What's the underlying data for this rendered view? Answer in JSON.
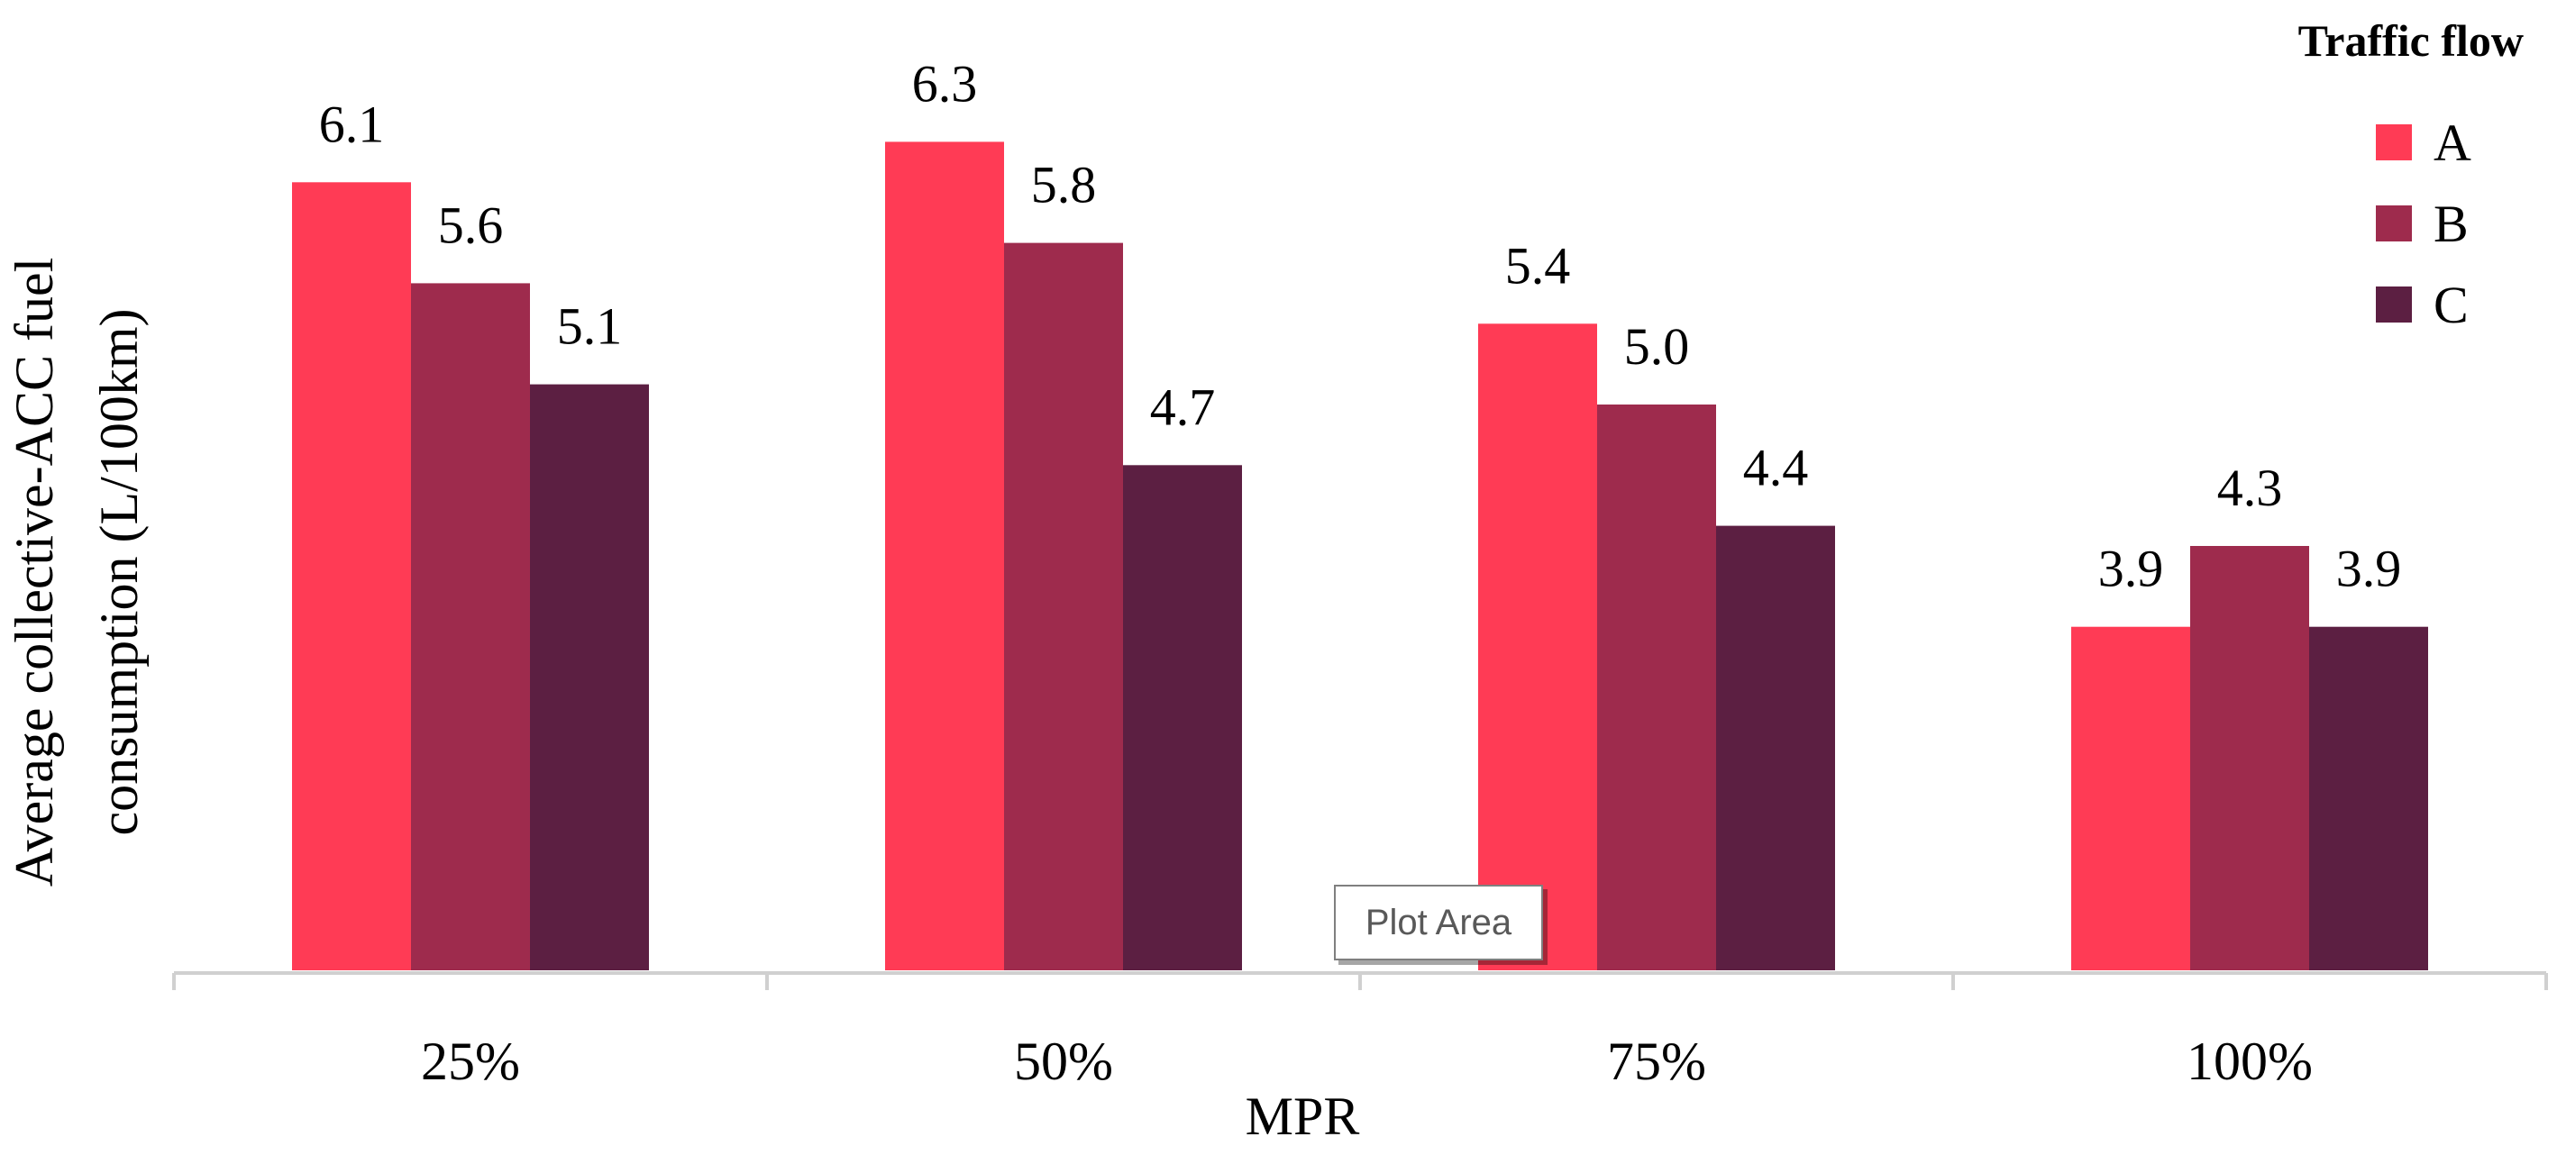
{
  "chart_data": {
    "type": "bar",
    "categories": [
      "25%",
      "50%",
      "75%",
      "100%"
    ],
    "series": [
      {
        "name": "A",
        "values": [
          6.1,
          6.3,
          5.4,
          3.9
        ],
        "color": "#ff3b55"
      },
      {
        "name": "B",
        "values": [
          5.6,
          5.8,
          5.0,
          4.3
        ],
        "color": "#9e2b4d"
      },
      {
        "name": "C",
        "values": [
          5.1,
          4.7,
          4.4,
          3.9
        ],
        "color": "#5c1f42"
      }
    ],
    "data_labels": [
      [
        "6.1",
        "6.3",
        "5.4",
        "3.9"
      ],
      [
        "5.6",
        "5.8",
        "5.0",
        "4.3"
      ],
      [
        "5.1",
        "4.7",
        "4.4",
        "3.9"
      ]
    ],
    "xlabel": "MPR",
    "ylabel_lines": [
      "Average collective-ACC fuel",
      "consumption (L/100km)"
    ],
    "ylim": [
      2.2,
      6.4
    ],
    "legend": {
      "title": "Traffic flow",
      "position": "top-right"
    },
    "grid": false
  },
  "tooltip": {
    "text": "Plot Area"
  }
}
